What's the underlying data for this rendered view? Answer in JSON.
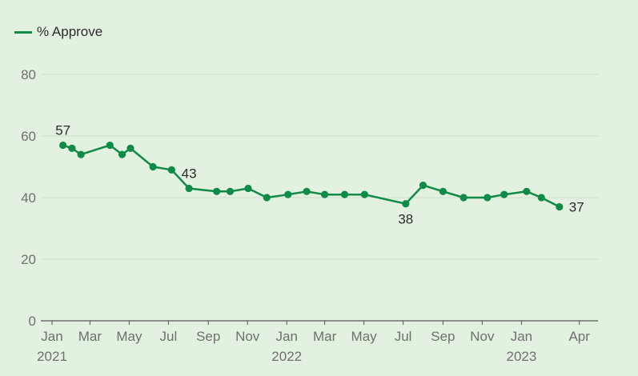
{
  "legend": {
    "label": "% Approve"
  },
  "colors": {
    "background": "#e3f2e0",
    "series": "#0f8a47",
    "gridline": "#cfdfcc",
    "axis": "#555555",
    "tick_text": "#6f6f6f"
  },
  "chart_data": {
    "type": "line",
    "title": "",
    "xlabel": "",
    "ylabel": "",
    "ylim": [
      0,
      80
    ],
    "y_ticks": [
      "0",
      "20",
      "40",
      "60",
      "80"
    ],
    "grid": true,
    "legend_position": "top-left",
    "x_range": [
      "2021-01-01",
      "2023-04-30"
    ],
    "x_ticks": [
      {
        "date": "2021-01-01",
        "month": "Jan",
        "year": "2021"
      },
      {
        "date": "2021-03-01",
        "month": "Mar",
        "year": ""
      },
      {
        "date": "2021-05-01",
        "month": "May",
        "year": ""
      },
      {
        "date": "2021-07-01",
        "month": "Jul",
        "year": ""
      },
      {
        "date": "2021-09-01",
        "month": "Sep",
        "year": ""
      },
      {
        "date": "2021-11-01",
        "month": "Nov",
        "year": ""
      },
      {
        "date": "2022-01-01",
        "month": "Jan",
        "year": "2022"
      },
      {
        "date": "2022-03-01",
        "month": "Mar",
        "year": ""
      },
      {
        "date": "2022-05-01",
        "month": "May",
        "year": ""
      },
      {
        "date": "2022-07-01",
        "month": "Jul",
        "year": ""
      },
      {
        "date": "2022-09-01",
        "month": "Sep",
        "year": ""
      },
      {
        "date": "2022-11-01",
        "month": "Nov",
        "year": ""
      },
      {
        "date": "2023-01-01",
        "month": "Jan",
        "year": "2023"
      },
      {
        "date": "2023-04-01",
        "month": "Apr",
        "year": ""
      }
    ],
    "series": [
      {
        "name": "% Approve",
        "points": [
          {
            "x": "2021-01-18",
            "y": 57
          },
          {
            "x": "2021-02-01",
            "y": 56
          },
          {
            "x": "2021-02-15",
            "y": 54
          },
          {
            "x": "2021-04-01",
            "y": 57
          },
          {
            "x": "2021-04-20",
            "y": 54
          },
          {
            "x": "2021-05-03",
            "y": 56
          },
          {
            "x": "2021-06-07",
            "y": 50
          },
          {
            "x": "2021-07-06",
            "y": 49
          },
          {
            "x": "2021-08-02",
            "y": 43
          },
          {
            "x": "2021-09-14",
            "y": 42
          },
          {
            "x": "2021-10-05",
            "y": 42
          },
          {
            "x": "2021-11-02",
            "y": 43
          },
          {
            "x": "2021-12-01",
            "y": 40
          },
          {
            "x": "2022-01-03",
            "y": 41
          },
          {
            "x": "2022-02-01",
            "y": 42
          },
          {
            "x": "2022-03-01",
            "y": 41
          },
          {
            "x": "2022-04-01",
            "y": 41
          },
          {
            "x": "2022-05-02",
            "y": 41
          },
          {
            "x": "2022-07-05",
            "y": 38
          },
          {
            "x": "2022-08-01",
            "y": 44
          },
          {
            "x": "2022-09-01",
            "y": 42
          },
          {
            "x": "2022-10-03",
            "y": 40
          },
          {
            "x": "2022-11-09",
            "y": 40
          },
          {
            "x": "2022-12-05",
            "y": 41
          },
          {
            "x": "2023-01-09",
            "y": 42
          },
          {
            "x": "2023-02-01",
            "y": 40
          },
          {
            "x": "2023-03-01",
            "y": 37
          }
        ]
      }
    ],
    "annotations": [
      {
        "x": "2021-01-18",
        "y": 57,
        "text": "57",
        "position": "above"
      },
      {
        "x": "2021-08-02",
        "y": 43,
        "text": "43",
        "position": "above"
      },
      {
        "x": "2022-07-05",
        "y": 38,
        "text": "38",
        "position": "below"
      },
      {
        "x": "2023-03-01",
        "y": 37,
        "text": "37",
        "position": "right"
      }
    ]
  }
}
